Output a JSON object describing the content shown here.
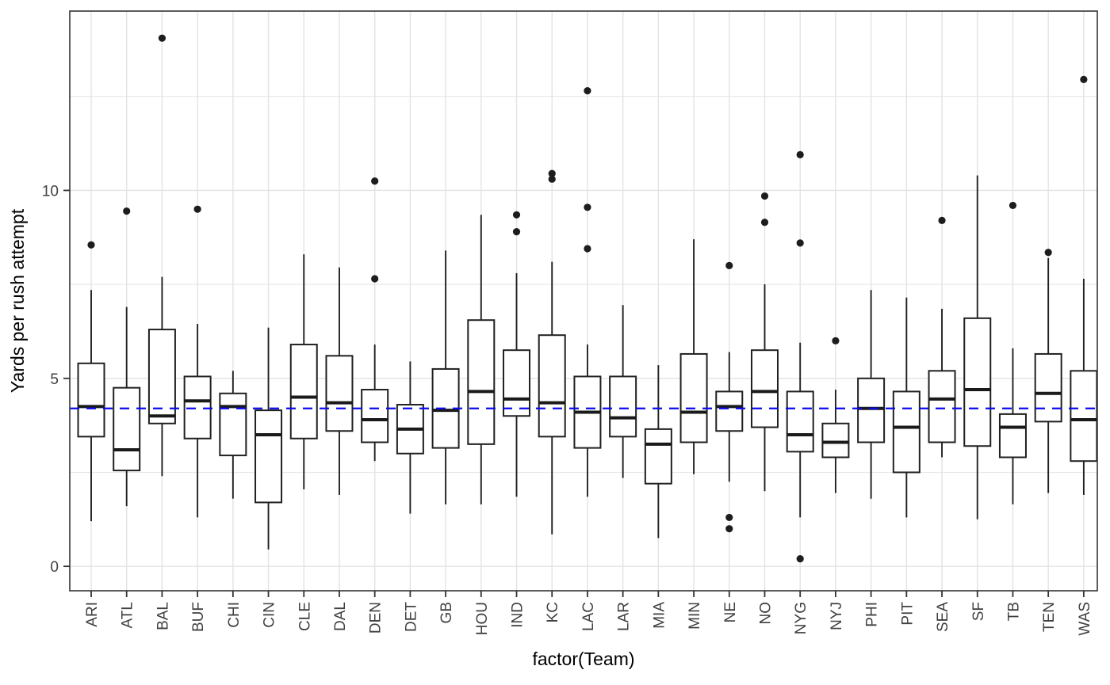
{
  "chart_data": {
    "type": "boxplot",
    "title": "",
    "xlabel": "factor(Team)",
    "ylabel": "Yards per rush attempt",
    "y_ticks": [
      0,
      5,
      10
    ],
    "y_minor_ticks": [
      2.5,
      7.5,
      12.5
    ],
    "ylim": [
      -0.65,
      14.77
    ],
    "grid": "on",
    "reference_line": {
      "value": 4.2,
      "style": "dashed",
      "color": "#0B0BEE"
    },
    "colors": {
      "box_stroke": "#202020",
      "box_fill": "#ffffff",
      "median": "#1A1A1A",
      "outlier": "#1D1D1D",
      "gridline": "#E3E3E3",
      "panel_border": "#343434",
      "tick_text": "#404040",
      "title_text": "#000000",
      "background": "#ffffff"
    },
    "categories": [
      "ARI",
      "ATL",
      "BAL",
      "BUF",
      "CHI",
      "CIN",
      "CLE",
      "DAL",
      "DEN",
      "DET",
      "GB",
      "HOU",
      "IND",
      "KC",
      "LAC",
      "LAR",
      "MIA",
      "MIN",
      "NE",
      "NO",
      "NYG",
      "NYJ",
      "PHI",
      "PIT",
      "SEA",
      "SF",
      "TB",
      "TEN",
      "WAS"
    ],
    "series": [
      {
        "team": "ARI",
        "min": 1.2,
        "q1": 3.45,
        "median": 4.25,
        "q3": 5.4,
        "max": 7.35,
        "outliers": [
          8.55
        ]
      },
      {
        "team": "ATL",
        "min": 1.6,
        "q1": 2.55,
        "median": 3.1,
        "q3": 4.75,
        "max": 6.9,
        "outliers": [
          9.45
        ]
      },
      {
        "team": "BAL",
        "min": 2.4,
        "q1": 3.8,
        "median": 4.0,
        "q3": 6.3,
        "max": 7.7,
        "outliers": [
          14.05
        ]
      },
      {
        "team": "BUF",
        "min": 1.3,
        "q1": 3.4,
        "median": 4.4,
        "q3": 5.05,
        "max": 6.45,
        "outliers": [
          9.5
        ]
      },
      {
        "team": "CHI",
        "min": 1.8,
        "q1": 2.95,
        "median": 4.25,
        "q3": 4.6,
        "max": 5.2,
        "outliers": []
      },
      {
        "team": "CIN",
        "min": 0.45,
        "q1": 1.7,
        "median": 3.5,
        "q3": 4.15,
        "max": 6.35,
        "outliers": []
      },
      {
        "team": "CLE",
        "min": 2.05,
        "q1": 3.4,
        "median": 4.5,
        "q3": 5.9,
        "max": 8.3,
        "outliers": []
      },
      {
        "team": "DAL",
        "min": 1.9,
        "q1": 3.6,
        "median": 4.35,
        "q3": 5.6,
        "max": 7.95,
        "outliers": []
      },
      {
        "team": "DEN",
        "min": 2.8,
        "q1": 3.3,
        "median": 3.9,
        "q3": 4.7,
        "max": 5.9,
        "outliers": [
          10.25,
          7.65
        ]
      },
      {
        "team": "DET",
        "min": 1.4,
        "q1": 3.0,
        "median": 3.65,
        "q3": 4.3,
        "max": 5.45,
        "outliers": []
      },
      {
        "team": "GB",
        "min": 1.65,
        "q1": 3.15,
        "median": 4.15,
        "q3": 5.25,
        "max": 8.4,
        "outliers": []
      },
      {
        "team": "HOU",
        "min": 1.65,
        "q1": 3.25,
        "median": 4.65,
        "q3": 6.55,
        "max": 9.35,
        "outliers": []
      },
      {
        "team": "IND",
        "min": 1.85,
        "q1": 4.0,
        "median": 4.45,
        "q3": 5.75,
        "max": 7.8,
        "outliers": [
          9.35,
          8.9
        ]
      },
      {
        "team": "KC",
        "min": 0.85,
        "q1": 3.45,
        "median": 4.35,
        "q3": 6.15,
        "max": 8.1,
        "outliers": [
          10.45,
          10.3
        ]
      },
      {
        "team": "LAC",
        "min": 1.85,
        "q1": 3.15,
        "median": 4.1,
        "q3": 5.05,
        "max": 5.9,
        "outliers": [
          12.65,
          9.55,
          8.45
        ]
      },
      {
        "team": "LAR",
        "min": 2.35,
        "q1": 3.45,
        "median": 3.95,
        "q3": 5.05,
        "max": 6.95,
        "outliers": []
      },
      {
        "team": "MIA",
        "min": 0.75,
        "q1": 2.2,
        "median": 3.25,
        "q3": 3.65,
        "max": 5.35,
        "outliers": []
      },
      {
        "team": "MIN",
        "min": 2.45,
        "q1": 3.3,
        "median": 4.1,
        "q3": 5.65,
        "max": 8.7,
        "outliers": []
      },
      {
        "team": "NE",
        "min": 2.25,
        "q1": 3.6,
        "median": 4.25,
        "q3": 4.65,
        "max": 5.7,
        "outliers": [
          8.0,
          1.3,
          1.0
        ]
      },
      {
        "team": "NO",
        "min": 2.0,
        "q1": 3.7,
        "median": 4.65,
        "q3": 5.75,
        "max": 7.5,
        "outliers": [
          9.85,
          9.15
        ]
      },
      {
        "team": "NYG",
        "min": 1.3,
        "q1": 3.05,
        "median": 3.5,
        "q3": 4.65,
        "max": 5.95,
        "outliers": [
          10.95,
          8.6,
          0.2
        ]
      },
      {
        "team": "NYJ",
        "min": 1.95,
        "q1": 2.9,
        "median": 3.3,
        "q3": 3.8,
        "max": 4.7,
        "outliers": [
          6.0
        ]
      },
      {
        "team": "PHI",
        "min": 1.8,
        "q1": 3.3,
        "median": 4.2,
        "q3": 5.0,
        "max": 7.35,
        "outliers": []
      },
      {
        "team": "PIT",
        "min": 1.3,
        "q1": 2.5,
        "median": 3.7,
        "q3": 4.65,
        "max": 7.15,
        "outliers": []
      },
      {
        "team": "SEA",
        "min": 2.9,
        "q1": 3.3,
        "median": 4.45,
        "q3": 5.2,
        "max": 6.85,
        "outliers": [
          9.2
        ]
      },
      {
        "team": "SF",
        "min": 1.25,
        "q1": 3.2,
        "median": 4.7,
        "q3": 6.6,
        "max": 10.4,
        "outliers": []
      },
      {
        "team": "TB",
        "min": 1.65,
        "q1": 2.9,
        "median": 3.7,
        "q3": 4.05,
        "max": 5.8,
        "outliers": [
          9.6
        ]
      },
      {
        "team": "TEN",
        "min": 1.95,
        "q1": 3.85,
        "median": 4.6,
        "q3": 5.65,
        "max": 8.2,
        "outliers": [
          8.35
        ]
      },
      {
        "team": "WAS",
        "min": 1.9,
        "q1": 2.8,
        "median": 3.9,
        "q3": 5.2,
        "max": 7.65,
        "outliers": [
          12.95
        ]
      }
    ]
  }
}
